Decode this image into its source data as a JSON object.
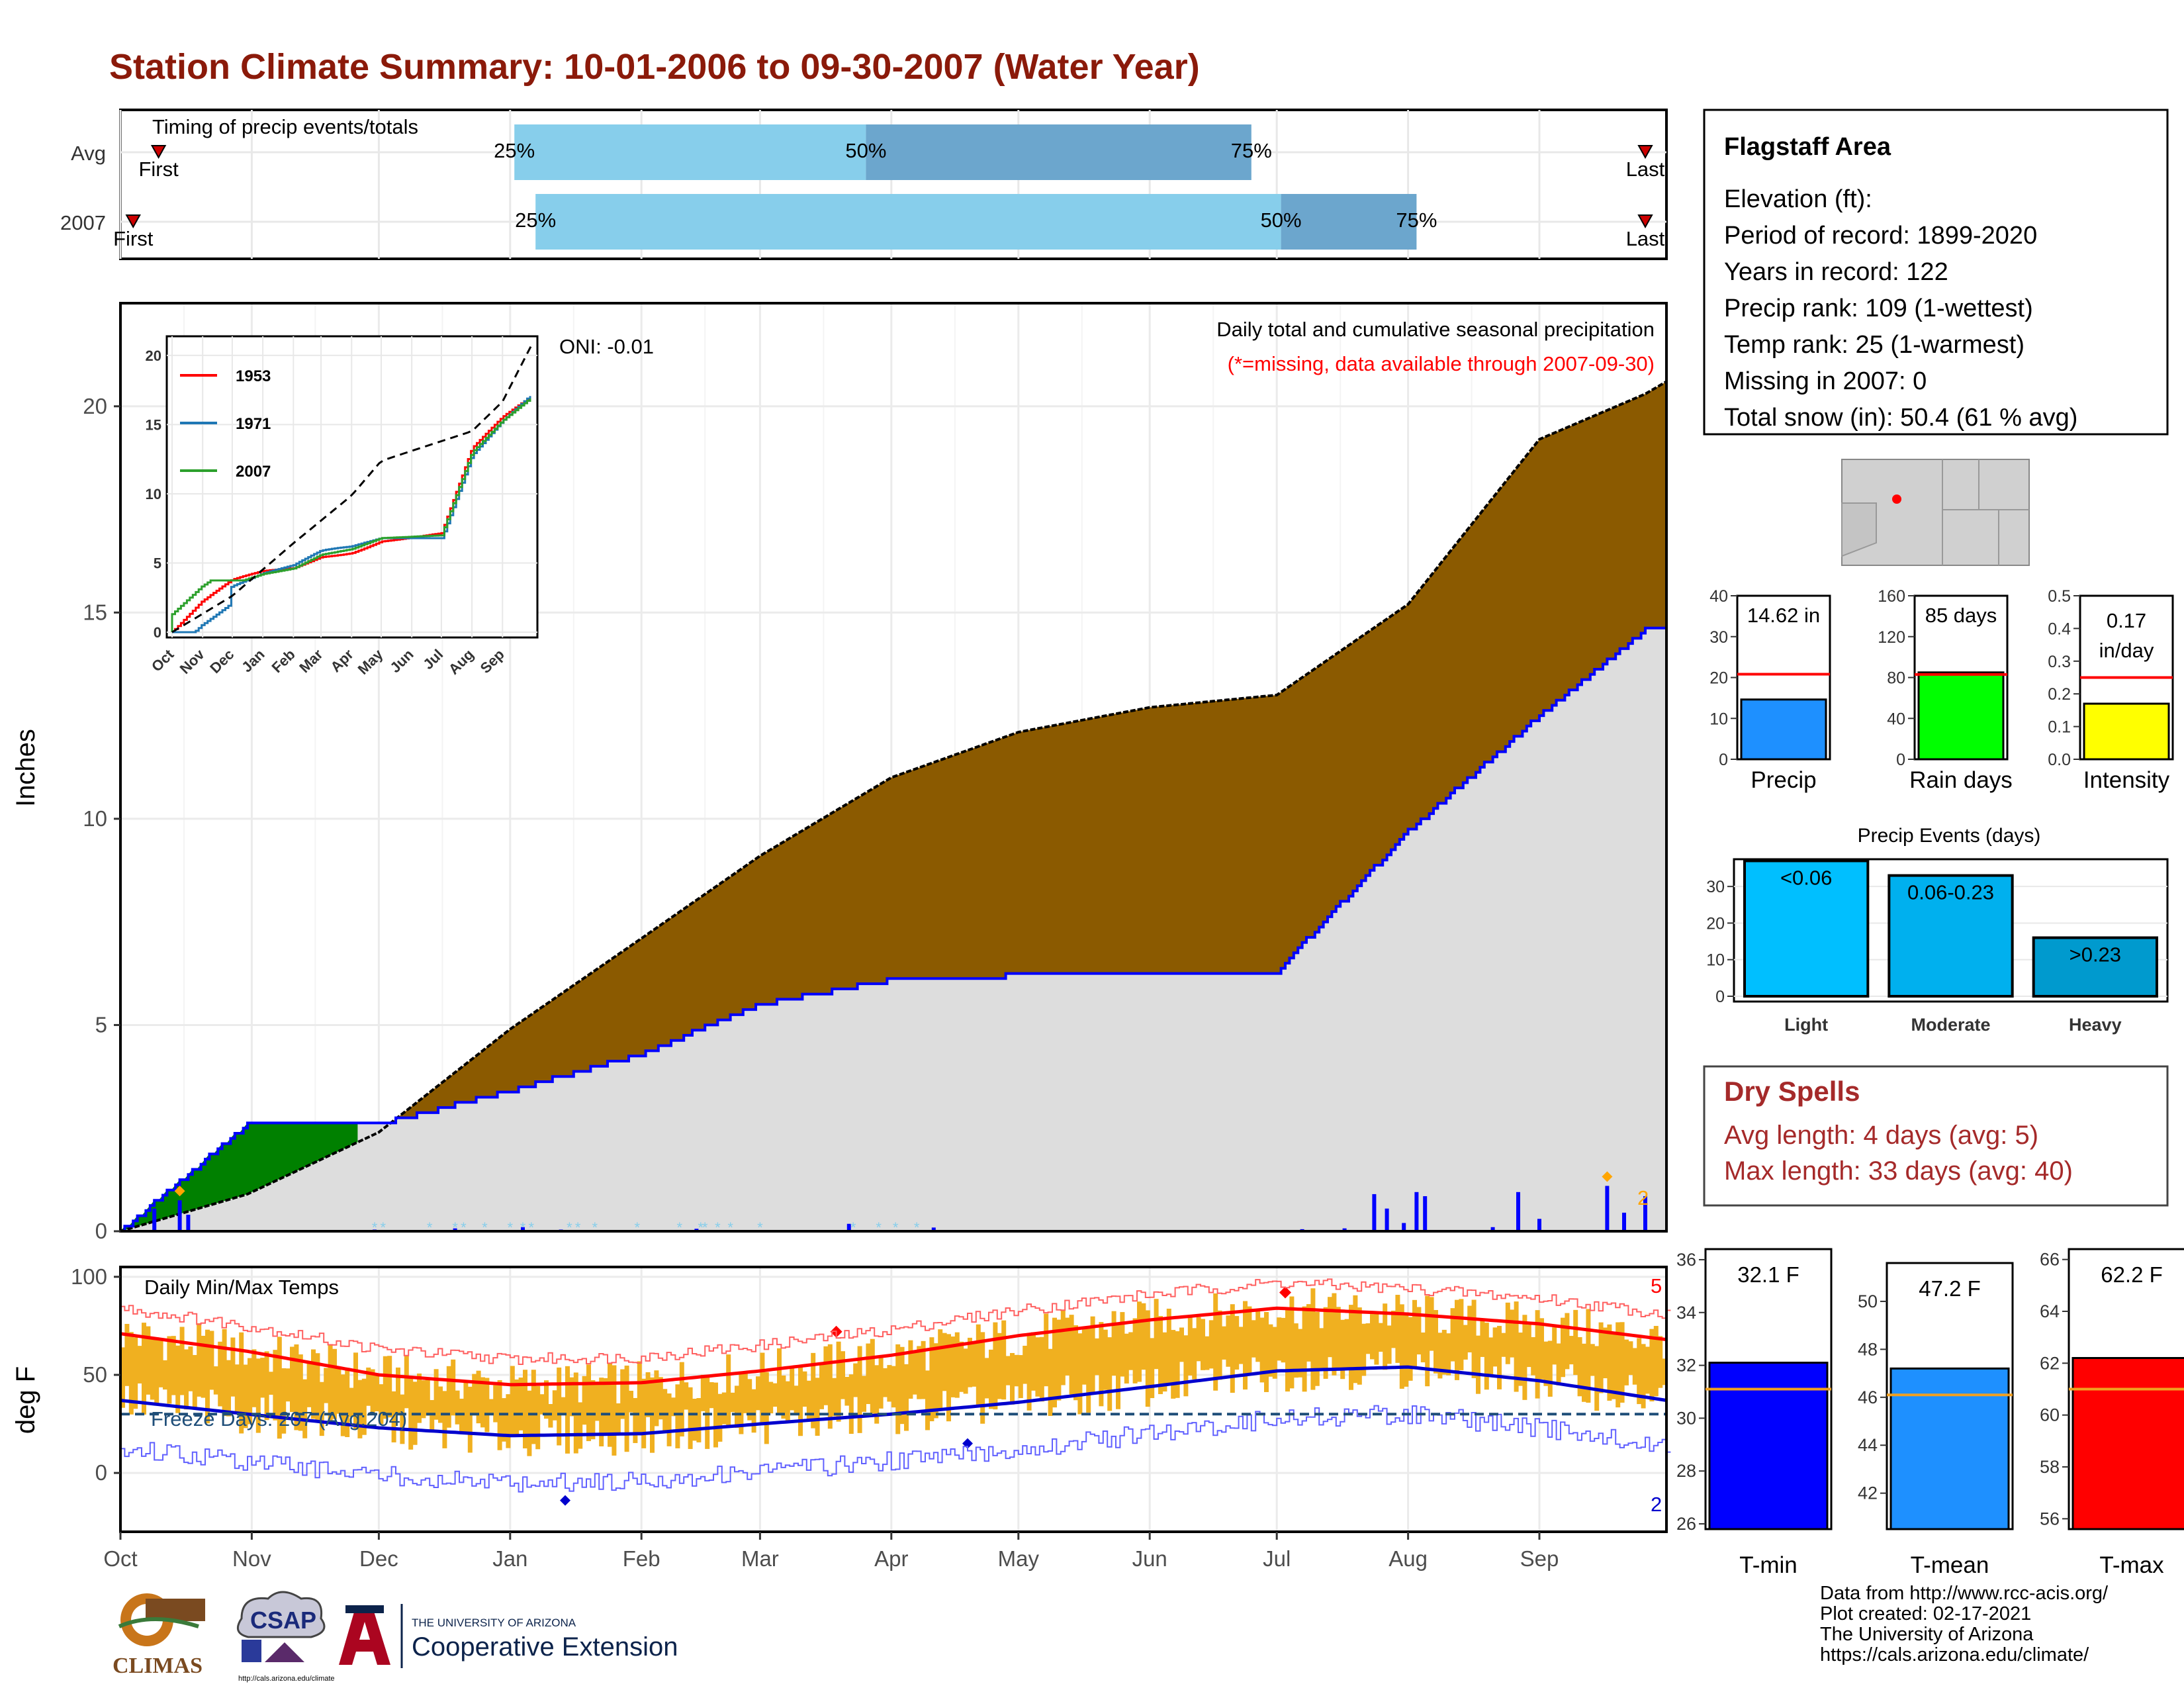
{
  "title": "Station Climate Summary: 10-01-2006 to 09-30-2007 (Water Year)",
  "colors": {
    "title": "#8b1a0a",
    "bar_light": "#87ceeb",
    "bar_dark": "#6ca6cd",
    "cum_avg_fill": "#8b5a00",
    "cum_obs_fill": "#dddddd",
    "surplus_fill": "#008000",
    "obs_line": "#0000ff",
    "temp_bar": "#f0b020",
    "tmax_avg": "#ff0000",
    "tmin_avg": "#0000cd",
    "dry_text": "#a52a2a"
  },
  "months": [
    "Oct",
    "Nov",
    "Dec",
    "Jan",
    "Feb",
    "Mar",
    "Apr",
    "May",
    "Jun",
    "Jul",
    "Aug",
    "Sep"
  ],
  "timing": {
    "title": "Timing of precip events/totals",
    "rows": [
      {
        "label": "Avg",
        "p25": "25%",
        "p50": "50%",
        "p75": "75%",
        "first": "First",
        "last": "Last",
        "first_day": 9,
        "p25_day": 93,
        "p50_day": 176,
        "p75_day": 267,
        "last_day": 360
      },
      {
        "label": "2007",
        "p25": "25%",
        "p50": "50%",
        "p75": "75%",
        "first": "First",
        "last": "Last",
        "first_day": 3,
        "p25_day": 98,
        "p50_day": 274,
        "p75_day": 306,
        "last_day": 360
      }
    ]
  },
  "main_panel": {
    "ylabel": "Inches",
    "yticks": [
      0,
      5,
      10,
      15,
      20
    ],
    "ylim": [
      0,
      22.5
    ],
    "caption_line1": "Daily total and cumulative seasonal precipitation",
    "caption_line2": "(*=missing, data available through 2007-09-30)",
    "oni": "ONI: -0.01",
    "extreme_label": "2"
  },
  "inset": {
    "xlabels": [
      "Oct",
      "Nov",
      "Dec",
      "Jan",
      "Feb",
      "Mar",
      "Apr",
      "May",
      "Jun",
      "Jul",
      "Aug",
      "Sep"
    ],
    "yticks": [
      0,
      5,
      10,
      15,
      20
    ],
    "legend": [
      {
        "name": "1953",
        "color": "#ff0000"
      },
      {
        "name": "1971",
        "color": "#1f77b4"
      },
      {
        "name": "2007",
        "color": "#2ca02c"
      }
    ]
  },
  "temp_panel": {
    "ylabel": "deg F",
    "title": "Daily Min/Max Temps",
    "yticks": [
      0,
      50,
      100
    ],
    "ylim": [
      -30,
      105
    ],
    "freeze_label": "Freeze Days: 207 (Avg:204)",
    "high_count": "5",
    "low_count": "2"
  },
  "station": {
    "name": "Flagstaff Area",
    "lines": [
      "Elevation (ft):",
      "Period of record: 1899-2020",
      "Years in record: 122",
      "Precip rank: 109 (1-wettest)",
      "Temp rank: 25 (1-warmest)",
      "Missing in 2007: 0",
      "Total snow (in): 50.4 (61 % avg)"
    ]
  },
  "mini_bars": [
    {
      "label": "Precip",
      "value_text": "14.62 in",
      "value": 14.62,
      "avg": 20.8,
      "ymax": 40,
      "yticks": [
        0,
        10,
        20,
        30,
        40
      ],
      "color": "#1e90ff"
    },
    {
      "label": "Rain days",
      "value_text": "85 days",
      "value": 85,
      "avg": 83,
      "ymax": 160,
      "yticks": [
        0,
        40,
        80,
        120,
        160
      ],
      "color": "#00ff00"
    },
    {
      "label": "Intensity",
      "value_text_1": "0.17",
      "value_text_2": "in/day",
      "value": 0.17,
      "avg": 0.25,
      "ymax": 0.5,
      "yticks": [
        "0.0",
        "0.1",
        "0.2",
        "0.3",
        "0.4",
        "0.5"
      ],
      "color": "#ffff00"
    }
  ],
  "events": {
    "title": "Precip Events (days)",
    "yticks": [
      0,
      10,
      20,
      30
    ],
    "bars": [
      {
        "label": "Light",
        "bar_text": "<0.06",
        "value": 37,
        "color": "#00bfff"
      },
      {
        "label": "Moderate",
        "bar_text": "0.06-0.23",
        "value": 33,
        "color": "#00b0ee"
      },
      {
        "label": "Heavy",
        "bar_text": ">0.23",
        "value": 16,
        "color": "#009ace"
      }
    ]
  },
  "dry_spells": {
    "title": "Dry Spells",
    "line1": "Avg length: 4 days (avg: 5)",
    "line2": "Max length: 33 days (avg: 40)"
  },
  "temp_bars": [
    {
      "label": "T-min",
      "value_text": "32.1 F",
      "value": 32.1,
      "avg": 31.1,
      "ymin": 25.8,
      "ymax": 36.4,
      "yticks": [
        26,
        28,
        30,
        32,
        34,
        36
      ],
      "color": "#0000ff"
    },
    {
      "label": "T-mean",
      "value_text": "47.2 F",
      "value": 47.2,
      "avg": 46.1,
      "ymin": 40.5,
      "ymax": 51.6,
      "yticks": [
        42,
        44,
        46,
        48,
        50
      ],
      "color": "#1e90ff"
    },
    {
      "label": "T-max",
      "value_text": "62.2 F",
      "value": 62.2,
      "avg": 61.0,
      "ymin": 55.6,
      "ymax": 66.4,
      "yticks": [
        56,
        58,
        60,
        62,
        64,
        66
      ],
      "color": "#ff0000"
    }
  ],
  "credits": [
    "Data from http://www.rcc-acis.org/",
    "Plot created: 02-17-2021",
    "The University of Arizona",
    "https://cals.arizona.edu/climate/"
  ],
  "logos": {
    "climas": "CLIMAS",
    "csap": "CSAP",
    "csap_url": "http://cals.arizona.edu/climate",
    "ua_line1": "THE UNIVERSITY OF ARIZONA",
    "ua_line2": "Cooperative Extension"
  },
  "chart_data": [
    {
      "type": "bar",
      "title": "Timing of precip events/totals",
      "categories": [
        "Avg",
        "2007"
      ],
      "series": [
        {
          "name": "25%",
          "values": [
            93,
            98
          ]
        },
        {
          "name": "50%",
          "values": [
            176,
            274
          ]
        },
        {
          "name": "75%",
          "values": [
            267,
            306
          ]
        }
      ]
    },
    {
      "type": "area",
      "title": "Daily total and cumulative seasonal precipitation",
      "ylabel": "Inches",
      "ylim": [
        0,
        22.5
      ],
      "x": [
        0,
        30,
        61,
        92,
        123,
        151,
        182,
        212,
        243,
        273,
        304,
        335,
        360,
        365
      ],
      "series": [
        {
          "values": [
            0,
            0.9,
            2.4,
            4.9,
            7.1,
            9.1,
            11.0,
            12.1,
            12.7,
            13.0,
            15.2,
            19.2,
            20.3,
            20.6
          ]
        },
        {
          "values": [
            0,
            2.6,
            2.6,
            3.4,
            4.3,
            5.5,
            6.1,
            6.2,
            6.2,
            6.3,
            9.7,
            12.5,
            14.6,
            14.6
          ]
        }
      ],
      "daily_bars": [
        {
          "x": 8,
          "y": 0.55
        },
        {
          "x": 14,
          "y": 0.75
        },
        {
          "x": 16,
          "y": 0.4
        },
        {
          "x": 60,
          "y": 0.04
        },
        {
          "x": 79,
          "y": 0.07
        },
        {
          "x": 95,
          "y": 0.1
        },
        {
          "x": 104,
          "y": 0.04
        },
        {
          "x": 136,
          "y": 0.06
        },
        {
          "x": 172,
          "y": 0.18
        },
        {
          "x": 192,
          "y": 0.09
        },
        {
          "x": 279,
          "y": 0.05
        },
        {
          "x": 289,
          "y": 0.07
        },
        {
          "x": 296,
          "y": 0.9
        },
        {
          "x": 299,
          "y": 0.55
        },
        {
          "x": 303,
          "y": 0.2
        },
        {
          "x": 306,
          "y": 0.95
        },
        {
          "x": 308,
          "y": 0.85
        },
        {
          "x": 324,
          "y": 0.1
        },
        {
          "x": 330,
          "y": 0.95
        },
        {
          "x": 335,
          "y": 0.3
        },
        {
          "x": 351,
          "y": 1.1
        },
        {
          "x": 355,
          "y": 0.45
        },
        {
          "x": 360,
          "y": 0.85
        }
      ]
    },
    {
      "type": "line",
      "title": "Daily Min/Max Temps",
      "ylabel": "deg F",
      "ylim": [
        -30,
        105
      ],
      "x": [
        0,
        30,
        61,
        92,
        123,
        151,
        182,
        212,
        243,
        273,
        304,
        335,
        365
      ],
      "series": [
        {
          "values": [
            71,
            62,
            50,
            45,
            46,
            52,
            60,
            70,
            78,
            84,
            81,
            76,
            68
          ]
        },
        {
          "values": [
            37,
            30,
            23,
            19,
            20,
            25,
            30,
            36,
            44,
            52,
            54,
            47,
            37
          ]
        },
        {
          "values": [
            30,
            30,
            30,
            30,
            30,
            30,
            30,
            30,
            30,
            30,
            30,
            30,
            30
          ]
        }
      ]
    }
  ]
}
